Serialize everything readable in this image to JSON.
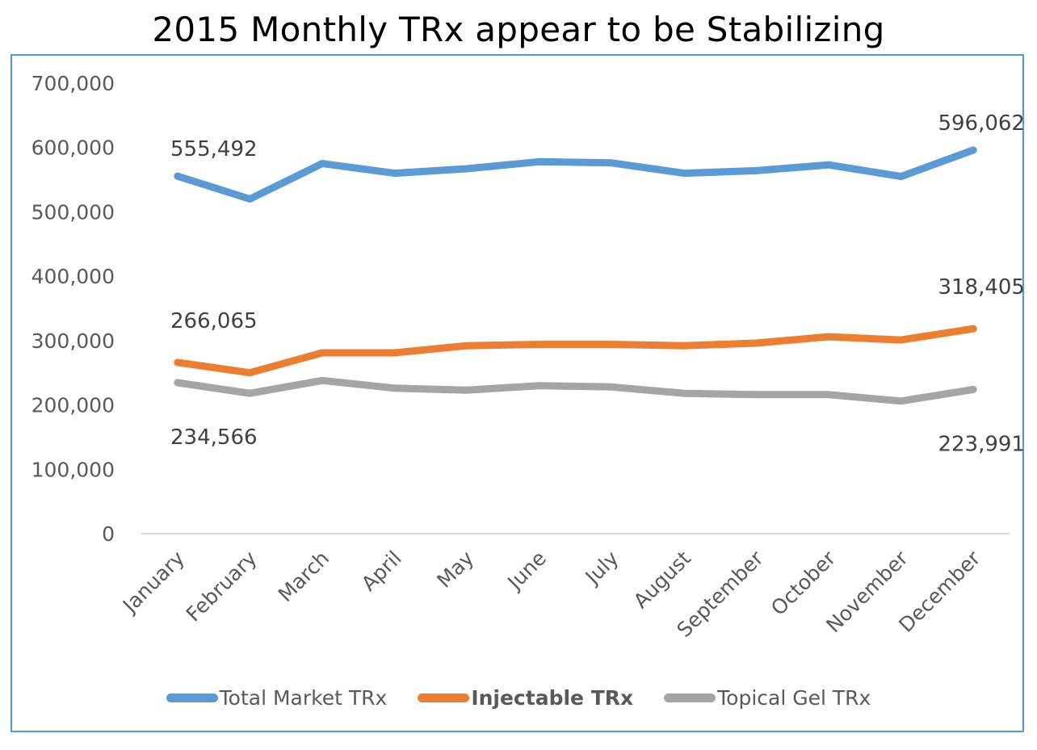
{
  "chart_data": {
    "type": "line",
    "title": "2015 Monthly TRx appear to be Stabilizing",
    "xlabel": "",
    "ylabel": "",
    "categories": [
      "January",
      "February",
      "March",
      "April",
      "May",
      "June",
      "July",
      "August",
      "September",
      "October",
      "November",
      "December"
    ],
    "ylim": [
      0,
      700000
    ],
    "yticks": [
      0,
      100000,
      200000,
      300000,
      400000,
      500000,
      600000,
      700000
    ],
    "ytick_labels": [
      "0",
      "100,000",
      "200,000",
      "300,000",
      "400,000",
      "500,000",
      "600,000",
      "700,000"
    ],
    "grid": false,
    "legend_position": "bottom",
    "series": [
      {
        "name": "Total Market TRx",
        "color": "#5b9bd5",
        "bold_legend": false,
        "values": [
          555492,
          520000,
          575000,
          560000,
          567000,
          578000,
          576000,
          560000,
          564000,
          573000,
          555000,
          596062
        ],
        "data_labels": [
          {
            "index": 0,
            "text": "555,492"
          },
          {
            "index": 11,
            "text": "596,062"
          }
        ]
      },
      {
        "name": "Injectable TRx",
        "color": "#ed7d31",
        "bold_legend": true,
        "values": [
          266065,
          250000,
          281000,
          281000,
          292000,
          294000,
          294000,
          292000,
          296000,
          306000,
          301000,
          318405
        ],
        "data_labels": [
          {
            "index": 0,
            "text": "266,065"
          },
          {
            "index": 11,
            "text": "318,405"
          }
        ]
      },
      {
        "name": "Topical Gel TRx",
        "color": "#a5a5a5",
        "bold_legend": false,
        "values": [
          234566,
          218000,
          238000,
          226000,
          223000,
          230000,
          228000,
          218000,
          216000,
          216000,
          206000,
          223991
        ],
        "data_labels": [
          {
            "index": 0,
            "text": "234,566"
          },
          {
            "index": 11,
            "text": "223,991"
          }
        ]
      }
    ]
  }
}
